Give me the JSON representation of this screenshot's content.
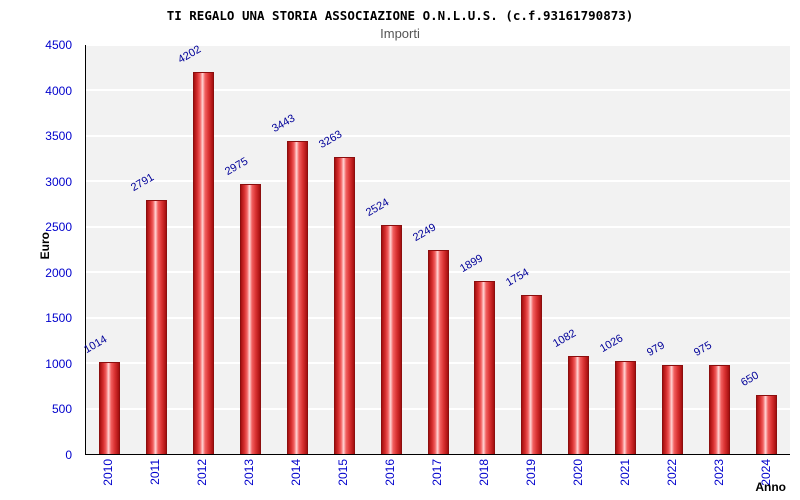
{
  "chart_data": {
    "type": "bar",
    "title": "TI REGALO UNA STORIA ASSOCIAZIONE O.N.L.U.S. (c.f.93161790873)",
    "subtitle": "Importi",
    "xlabel": "Anno",
    "ylabel": "Euro",
    "categories": [
      "2010",
      "2011",
      "2012",
      "2013",
      "2014",
      "2015",
      "2016",
      "2017",
      "2018",
      "2019",
      "2020",
      "2021",
      "2022",
      "2023",
      "2024"
    ],
    "values": [
      1014,
      2791,
      4202,
      2975,
      3443,
      3263,
      2524,
      2249,
      1899,
      1754,
      1082,
      1026,
      979,
      975,
      650
    ],
    "ylim": [
      0,
      4500
    ],
    "ytick_step": 500,
    "legend": "none",
    "grid": "horizontal",
    "colors": {
      "bar_main": "#d83030",
      "bar_highlight": "#ffd6d6",
      "bar_border": "#8c0e0e",
      "axis_tick_label": "#0000cc",
      "value_label": "#000099",
      "plot_background": "#f2f2f2",
      "gridline": "#ffffff",
      "title": "#000000",
      "subtitle": "#555555"
    }
  }
}
